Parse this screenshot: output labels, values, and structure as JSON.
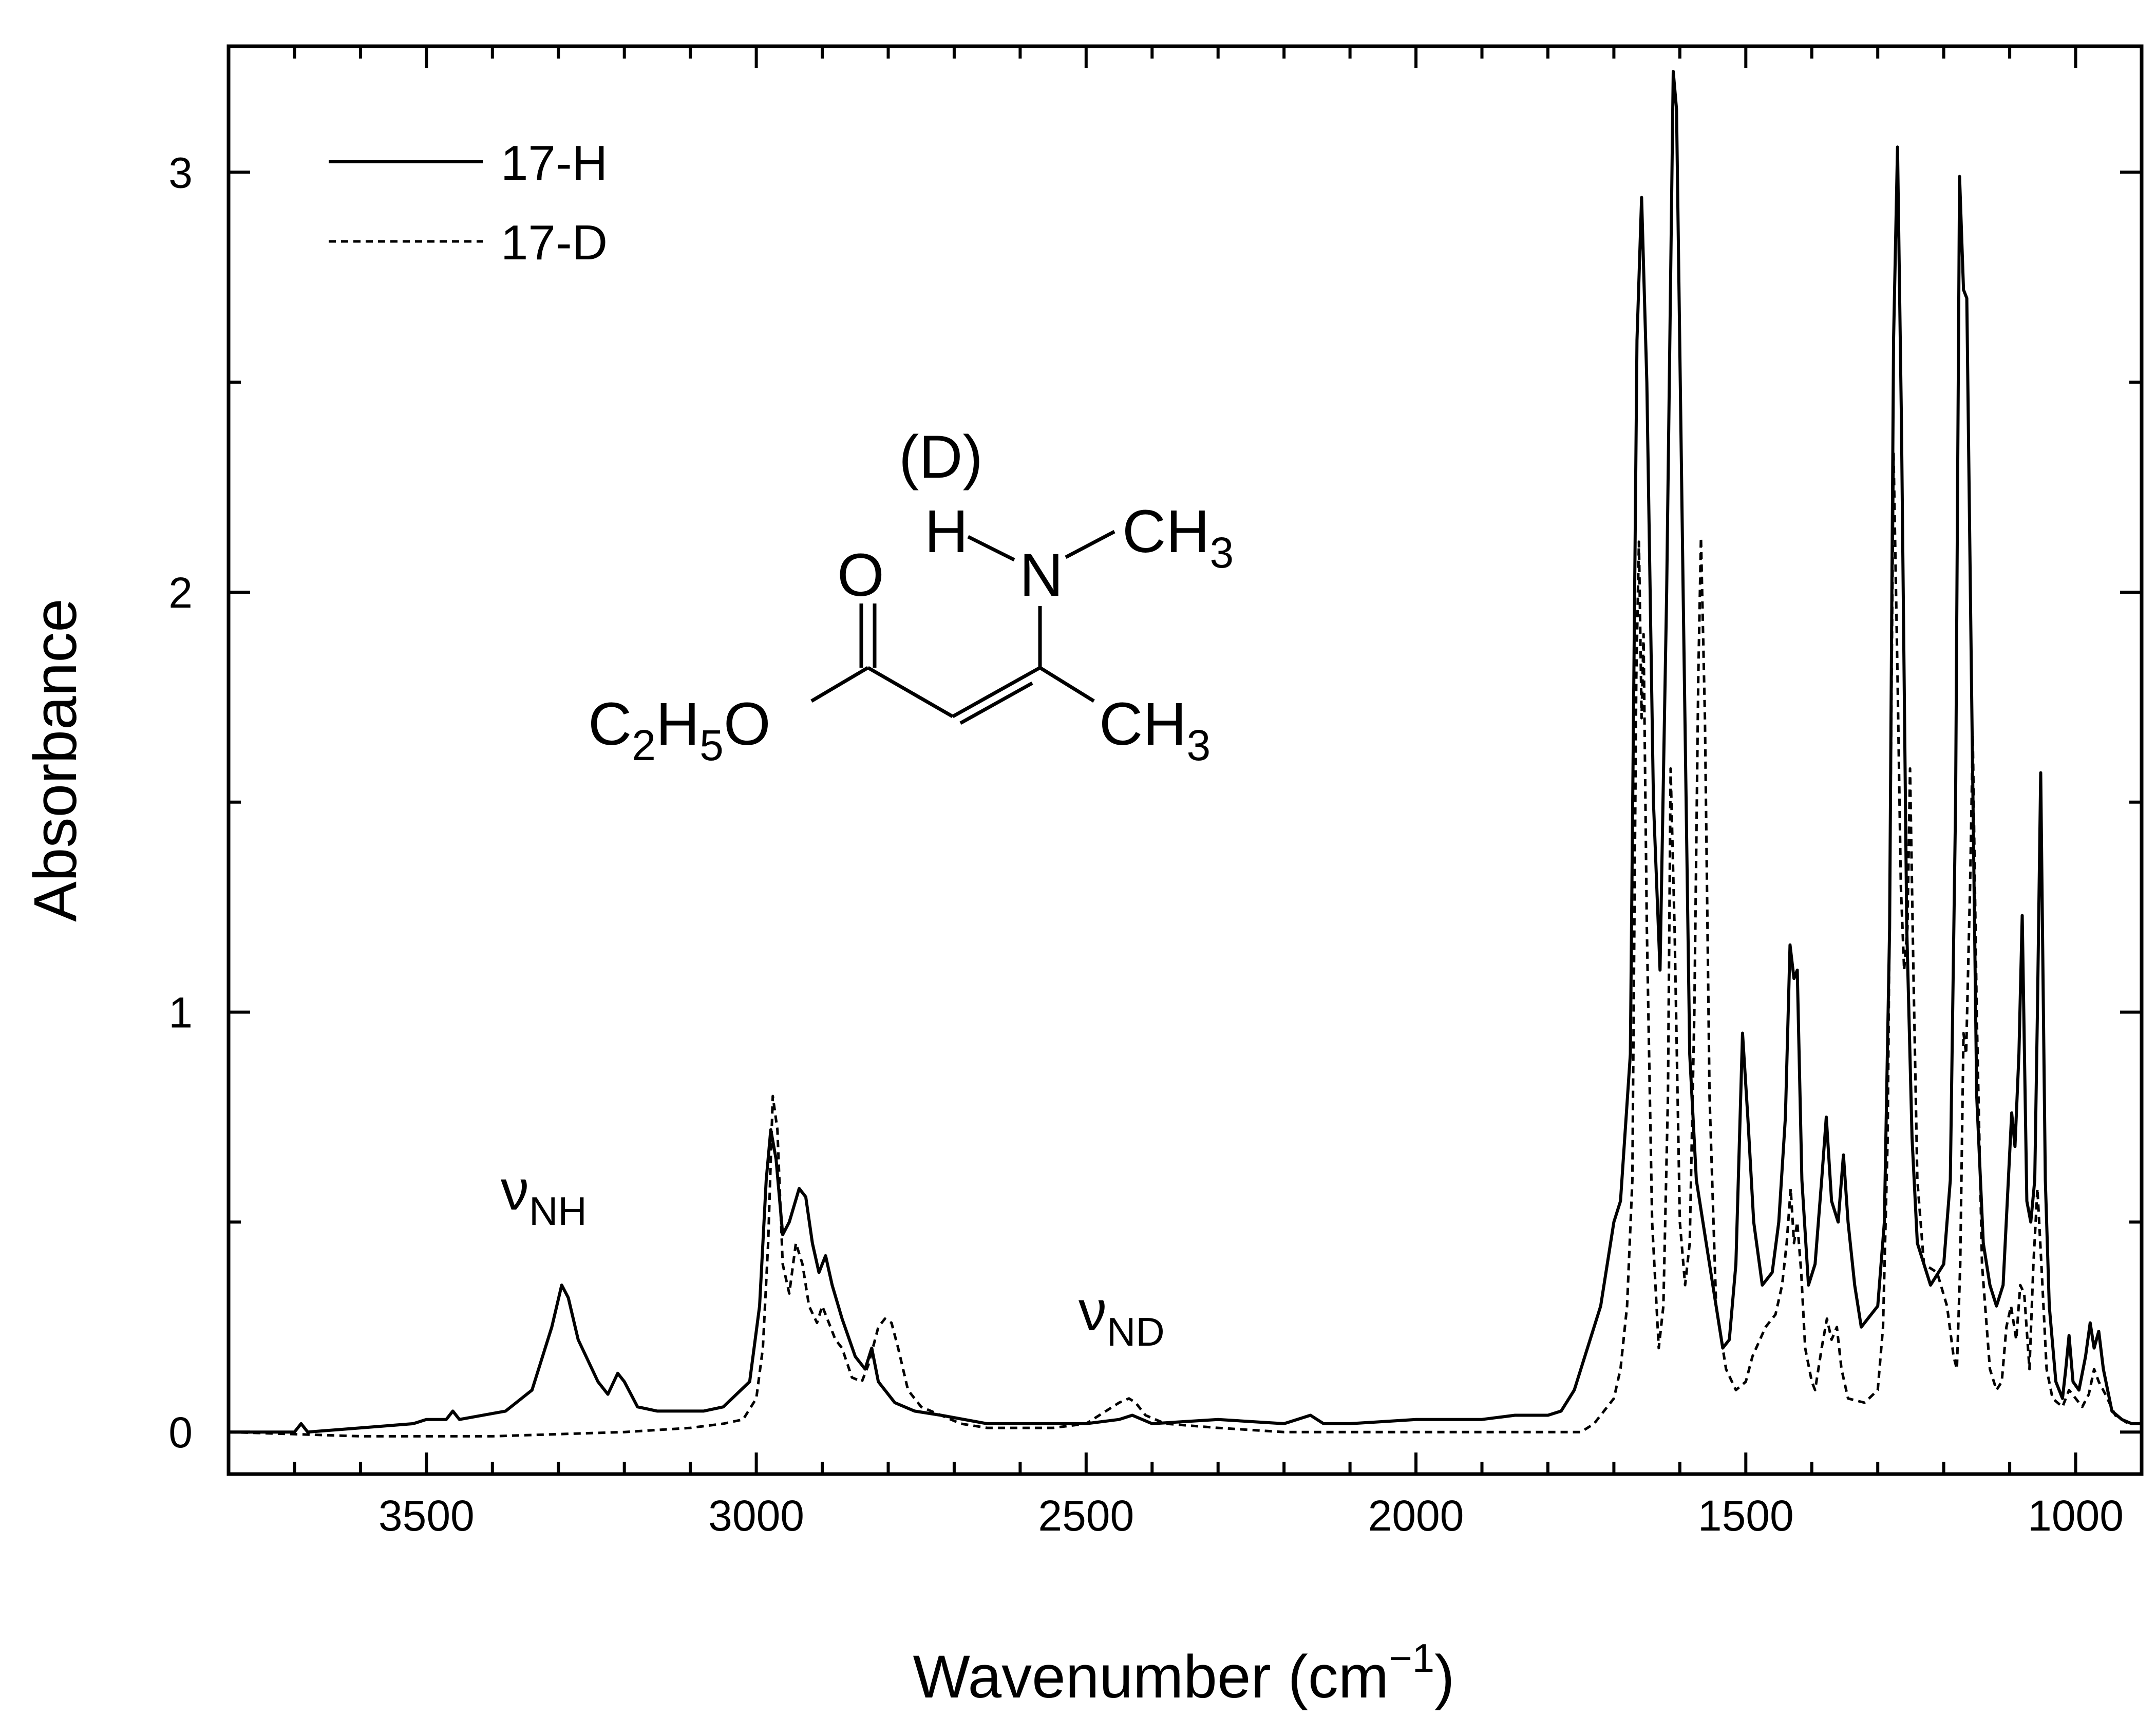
{
  "chart_data": {
    "type": "line",
    "xlabel": "Wavenumber (cm",
    "xlabel_sup": "−1",
    "xlabel_close": ")",
    "ylabel": "Absorbance",
    "xlim": [
      3800,
      900
    ],
    "ylim": [
      -0.1,
      3.3
    ],
    "x_reversed": true,
    "xticks": [
      3500,
      3000,
      2500,
      2000,
      1500,
      1000
    ],
    "xtick_labels": [
      "3500",
      "3000",
      "2500",
      "2000",
      "1500",
      "1000"
    ],
    "yticks": [
      0,
      1,
      2,
      3
    ],
    "ytick_labels": [
      "0",
      "1",
      "2",
      "3"
    ],
    "grid": false,
    "legend_position": "top-left",
    "series": [
      {
        "name": "17-H",
        "line_style": "solid",
        "color": "#000000",
        "points": [
          [
            3800,
            0.0
          ],
          [
            3700,
            0.0
          ],
          [
            3690,
            0.02
          ],
          [
            3680,
            0.0
          ],
          [
            3600,
            0.01
          ],
          [
            3520,
            0.02
          ],
          [
            3500,
            0.03
          ],
          [
            3470,
            0.03
          ],
          [
            3460,
            0.05
          ],
          [
            3450,
            0.03
          ],
          [
            3380,
            0.05
          ],
          [
            3340,
            0.1
          ],
          [
            3310,
            0.25
          ],
          [
            3295,
            0.35
          ],
          [
            3285,
            0.32
          ],
          [
            3270,
            0.22
          ],
          [
            3240,
            0.12
          ],
          [
            3225,
            0.09
          ],
          [
            3210,
            0.14
          ],
          [
            3200,
            0.12
          ],
          [
            3180,
            0.06
          ],
          [
            3150,
            0.05
          ],
          [
            3120,
            0.05
          ],
          [
            3080,
            0.05
          ],
          [
            3050,
            0.06
          ],
          [
            3010,
            0.12
          ],
          [
            2995,
            0.3
          ],
          [
            2985,
            0.6
          ],
          [
            2978,
            0.72
          ],
          [
            2970,
            0.65
          ],
          [
            2960,
            0.47
          ],
          [
            2950,
            0.5
          ],
          [
            2935,
            0.58
          ],
          [
            2925,
            0.56
          ],
          [
            2915,
            0.45
          ],
          [
            2905,
            0.38
          ],
          [
            2895,
            0.42
          ],
          [
            2885,
            0.35
          ],
          [
            2870,
            0.27
          ],
          [
            2850,
            0.18
          ],
          [
            2835,
            0.15
          ],
          [
            2825,
            0.2
          ],
          [
            2815,
            0.12
          ],
          [
            2790,
            0.07
          ],
          [
            2760,
            0.05
          ],
          [
            2720,
            0.04
          ],
          [
            2650,
            0.02
          ],
          [
            2600,
            0.02
          ],
          [
            2500,
            0.02
          ],
          [
            2450,
            0.03
          ],
          [
            2430,
            0.04
          ],
          [
            2400,
            0.02
          ],
          [
            2300,
            0.03
          ],
          [
            2200,
            0.02
          ],
          [
            2160,
            0.04
          ],
          [
            2140,
            0.02
          ],
          [
            2100,
            0.02
          ],
          [
            2000,
            0.03
          ],
          [
            1900,
            0.03
          ],
          [
            1850,
            0.04
          ],
          [
            1800,
            0.04
          ],
          [
            1780,
            0.05
          ],
          [
            1760,
            0.1
          ],
          [
            1740,
            0.2
          ],
          [
            1720,
            0.3
          ],
          [
            1700,
            0.5
          ],
          [
            1690,
            0.55
          ],
          [
            1675,
            0.9
          ],
          [
            1665,
            2.6
          ],
          [
            1658,
            2.94
          ],
          [
            1650,
            2.5
          ],
          [
            1640,
            1.5
          ],
          [
            1630,
            1.1
          ],
          [
            1620,
            2.0
          ],
          [
            1610,
            3.24
          ],
          [
            1605,
            3.15
          ],
          [
            1595,
            2.0
          ],
          [
            1585,
            0.9
          ],
          [
            1575,
            0.6
          ],
          [
            1560,
            0.45
          ],
          [
            1545,
            0.3
          ],
          [
            1535,
            0.2
          ],
          [
            1525,
            0.22
          ],
          [
            1515,
            0.4
          ],
          [
            1505,
            0.95
          ],
          [
            1497,
            0.75
          ],
          [
            1488,
            0.5
          ],
          [
            1475,
            0.35
          ],
          [
            1460,
            0.38
          ],
          [
            1450,
            0.5
          ],
          [
            1440,
            0.75
          ],
          [
            1433,
            1.16
          ],
          [
            1427,
            1.08
          ],
          [
            1422,
            1.1
          ],
          [
            1415,
            0.6
          ],
          [
            1405,
            0.35
          ],
          [
            1395,
            0.4
          ],
          [
            1385,
            0.6
          ],
          [
            1378,
            0.75
          ],
          [
            1370,
            0.55
          ],
          [
            1360,
            0.5
          ],
          [
            1352,
            0.66
          ],
          [
            1345,
            0.5
          ],
          [
            1335,
            0.35
          ],
          [
            1325,
            0.25
          ],
          [
            1300,
            0.3
          ],
          [
            1290,
            0.5
          ],
          [
            1282,
            1.2
          ],
          [
            1276,
            2.6
          ],
          [
            1270,
            3.06
          ],
          [
            1264,
            2.4
          ],
          [
            1256,
            1.2
          ],
          [
            1248,
            0.7
          ],
          [
            1240,
            0.45
          ],
          [
            1220,
            0.35
          ],
          [
            1200,
            0.4
          ],
          [
            1190,
            0.6
          ],
          [
            1182,
            1.5
          ],
          [
            1176,
            2.99
          ],
          [
            1170,
            2.72
          ],
          [
            1165,
            2.7
          ],
          [
            1158,
            1.8
          ],
          [
            1150,
            0.8
          ],
          [
            1140,
            0.45
          ],
          [
            1130,
            0.35
          ],
          [
            1120,
            0.3
          ],
          [
            1110,
            0.35
          ],
          [
            1102,
            0.6
          ],
          [
            1097,
            0.76
          ],
          [
            1092,
            0.68
          ],
          [
            1086,
            0.9
          ],
          [
            1081,
            1.23
          ],
          [
            1074,
            0.55
          ],
          [
            1068,
            0.5
          ],
          [
            1062,
            0.6
          ],
          [
            1058,
            1.0
          ],
          [
            1053,
            1.57
          ],
          [
            1046,
            0.6
          ],
          [
            1040,
            0.3
          ],
          [
            1030,
            0.12
          ],
          [
            1020,
            0.08
          ],
          [
            1015,
            0.15
          ],
          [
            1010,
            0.23
          ],
          [
            1004,
            0.12
          ],
          [
            995,
            0.1
          ],
          [
            985,
            0.18
          ],
          [
            978,
            0.26
          ],
          [
            972,
            0.2
          ],
          [
            965,
            0.24
          ],
          [
            958,
            0.15
          ],
          [
            945,
            0.05
          ],
          [
            930,
            0.03
          ],
          [
            915,
            0.02
          ],
          [
            900,
            0.02
          ]
        ]
      },
      {
        "name": "17-D",
        "line_style": "dashed",
        "color": "#000000",
        "points": [
          [
            3800,
            0.0
          ],
          [
            3600,
            -0.01
          ],
          [
            3400,
            -0.01
          ],
          [
            3200,
            0.0
          ],
          [
            3100,
            0.01
          ],
          [
            3050,
            0.02
          ],
          [
            3020,
            0.03
          ],
          [
            3000,
            0.08
          ],
          [
            2990,
            0.2
          ],
          [
            2982,
            0.45
          ],
          [
            2975,
            0.8
          ],
          [
            2968,
            0.72
          ],
          [
            2960,
            0.4
          ],
          [
            2950,
            0.33
          ],
          [
            2940,
            0.45
          ],
          [
            2930,
            0.4
          ],
          [
            2920,
            0.3
          ],
          [
            2908,
            0.26
          ],
          [
            2900,
            0.3
          ],
          [
            2890,
            0.26
          ],
          [
            2880,
            0.22
          ],
          [
            2870,
            0.2
          ],
          [
            2855,
            0.13
          ],
          [
            2840,
            0.12
          ],
          [
            2830,
            0.16
          ],
          [
            2815,
            0.25
          ],
          [
            2805,
            0.27
          ],
          [
            2795,
            0.26
          ],
          [
            2785,
            0.2
          ],
          [
            2770,
            0.1
          ],
          [
            2750,
            0.06
          ],
          [
            2720,
            0.04
          ],
          [
            2690,
            0.02
          ],
          [
            2650,
            0.01
          ],
          [
            2550,
            0.01
          ],
          [
            2500,
            0.02
          ],
          [
            2470,
            0.05
          ],
          [
            2450,
            0.07
          ],
          [
            2435,
            0.08
          ],
          [
            2425,
            0.07
          ],
          [
            2410,
            0.04
          ],
          [
            2380,
            0.02
          ],
          [
            2300,
            0.01
          ],
          [
            2200,
            0.0
          ],
          [
            2100,
            0.0
          ],
          [
            2000,
            0.0
          ],
          [
            1900,
            0.0
          ],
          [
            1800,
            0.0
          ],
          [
            1750,
            0.0
          ],
          [
            1730,
            0.02
          ],
          [
            1715,
            0.05
          ],
          [
            1700,
            0.08
          ],
          [
            1690,
            0.15
          ],
          [
            1680,
            0.3
          ],
          [
            1672,
            0.6
          ],
          [
            1666,
            1.8
          ],
          [
            1662,
            2.12
          ],
          [
            1658,
            1.7
          ],
          [
            1655,
            1.9
          ],
          [
            1650,
            1.2
          ],
          [
            1642,
            0.5
          ],
          [
            1632,
            0.2
          ],
          [
            1625,
            0.3
          ],
          [
            1618,
            0.8
          ],
          [
            1614,
            1.58
          ],
          [
            1608,
            1.2
          ],
          [
            1600,
            0.5
          ],
          [
            1592,
            0.35
          ],
          [
            1585,
            0.45
          ],
          [
            1578,
            1.0
          ],
          [
            1572,
            1.8
          ],
          [
            1568,
            2.13
          ],
          [
            1562,
            1.7
          ],
          [
            1555,
            0.8
          ],
          [
            1545,
            0.3
          ],
          [
            1530,
            0.15
          ],
          [
            1515,
            0.1
          ],
          [
            1500,
            0.12
          ],
          [
            1490,
            0.18
          ],
          [
            1470,
            0.25
          ],
          [
            1455,
            0.28
          ],
          [
            1445,
            0.35
          ],
          [
            1438,
            0.45
          ],
          [
            1432,
            0.58
          ],
          [
            1427,
            0.45
          ],
          [
            1422,
            0.5
          ],
          [
            1416,
            0.38
          ],
          [
            1410,
            0.2
          ],
          [
            1400,
            0.12
          ],
          [
            1395,
            0.1
          ],
          [
            1385,
            0.2
          ],
          [
            1377,
            0.27
          ],
          [
            1370,
            0.22
          ],
          [
            1362,
            0.25
          ],
          [
            1355,
            0.15
          ],
          [
            1345,
            0.08
          ],
          [
            1320,
            0.07
          ],
          [
            1300,
            0.1
          ],
          [
            1292,
            0.25
          ],
          [
            1285,
            0.7
          ],
          [
            1280,
            1.6
          ],
          [
            1276,
            2.33
          ],
          [
            1270,
            1.8
          ],
          [
            1265,
            1.3
          ],
          [
            1260,
            1.1
          ],
          [
            1255,
            1.2
          ],
          [
            1251,
            1.58
          ],
          [
            1246,
            1.1
          ],
          [
            1240,
            0.6
          ],
          [
            1230,
            0.4
          ],
          [
            1210,
            0.38
          ],
          [
            1195,
            0.3
          ],
          [
            1185,
            0.18
          ],
          [
            1180,
            0.15
          ],
          [
            1175,
            0.4
          ],
          [
            1170,
            0.95
          ],
          [
            1166,
            0.9
          ],
          [
            1160,
            1.3
          ],
          [
            1156,
            1.66
          ],
          [
            1150,
            1.0
          ],
          [
            1142,
            0.4
          ],
          [
            1130,
            0.15
          ],
          [
            1120,
            0.1
          ],
          [
            1112,
            0.12
          ],
          [
            1105,
            0.25
          ],
          [
            1098,
            0.3
          ],
          [
            1090,
            0.22
          ],
          [
            1084,
            0.35
          ],
          [
            1078,
            0.33
          ],
          [
            1070,
            0.15
          ],
          [
            1064,
            0.4
          ],
          [
            1058,
            0.58
          ],
          [
            1052,
            0.4
          ],
          [
            1044,
            0.15
          ],
          [
            1035,
            0.08
          ],
          [
            1020,
            0.06
          ],
          [
            1010,
            0.1
          ],
          [
            1000,
            0.08
          ],
          [
            990,
            0.06
          ],
          [
            980,
            0.09
          ],
          [
            972,
            0.15
          ],
          [
            965,
            0.12
          ],
          [
            955,
            0.09
          ],
          [
            940,
            0.04
          ],
          [
            920,
            0.02
          ],
          [
            900,
            0.02
          ]
        ]
      }
    ],
    "annotations": [
      {
        "base": "ν",
        "sub": "NH",
        "x": 3260,
        "y": 0.55
      },
      {
        "base": "ν",
        "sub": "ND",
        "x": 2470,
        "y": 0.22
      }
    ]
  },
  "molecule": {
    "deuterium_label": "(D)",
    "h_atom": "H",
    "n_atom": "N",
    "o_atom": "O",
    "ch3_base": "CH",
    "ch3_sub": "3",
    "ester_c": "C",
    "ester_c_sub": "2",
    "ester_h": "H",
    "ester_h_sub": "5",
    "ester_o": "O"
  }
}
